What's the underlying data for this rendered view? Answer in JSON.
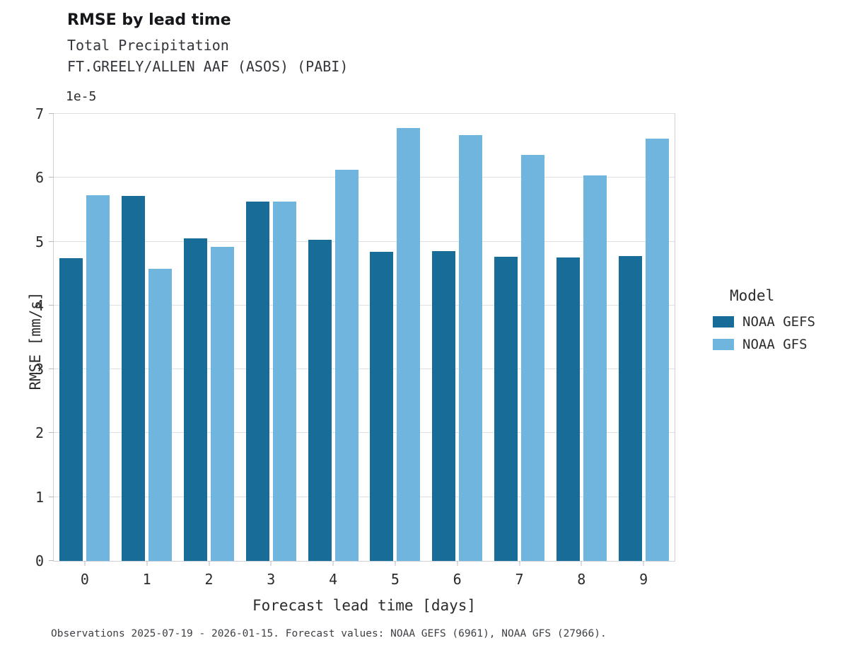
{
  "header": {
    "title": "RMSE by lead time",
    "subtitle1": "Total Precipitation",
    "subtitle2": "FT.GREELY/ALLEN AAF (ASOS) (PABI)"
  },
  "axes": {
    "offset_text": "1e-5",
    "xlabel": "Forecast lead time [days]",
    "ylabel": "RMSE [mm/s]"
  },
  "legend": {
    "title": "Model"
  },
  "caption": "Observations 2025-07-19 - 2026-01-15. Forecast values: NOAA GEFS (6961), NOAA GFS (27966).",
  "chart_data": {
    "type": "bar",
    "title": "RMSE by lead time",
    "subtitle": "Total Precipitation — FT.GREELY/ALLEN AAF (ASOS) (PABI)",
    "categories": [
      "0",
      "1",
      "2",
      "3",
      "4",
      "5",
      "6",
      "7",
      "8",
      "9"
    ],
    "series": [
      {
        "name": "NOAA GEFS",
        "color": "#176d97",
        "values": [
          4.74,
          5.71,
          5.05,
          5.63,
          5.03,
          4.84,
          4.85,
          4.76,
          4.75,
          4.77
        ]
      },
      {
        "name": "NOAA GFS",
        "color": "#70b5dd",
        "values": [
          5.73,
          4.57,
          4.92,
          5.63,
          6.13,
          6.78,
          6.67,
          6.36,
          6.04,
          6.61
        ]
      }
    ],
    "value_scale": "1e-5",
    "value_units": "mm/s",
    "xlabel": "Forecast lead time [days]",
    "ylabel": "RMSE [mm/s]",
    "ylim": [
      0,
      7
    ],
    "yticks": [
      0,
      1,
      2,
      3,
      4,
      5,
      6,
      7
    ],
    "grid": true,
    "legend_title": "Model",
    "legend_position": "right"
  }
}
